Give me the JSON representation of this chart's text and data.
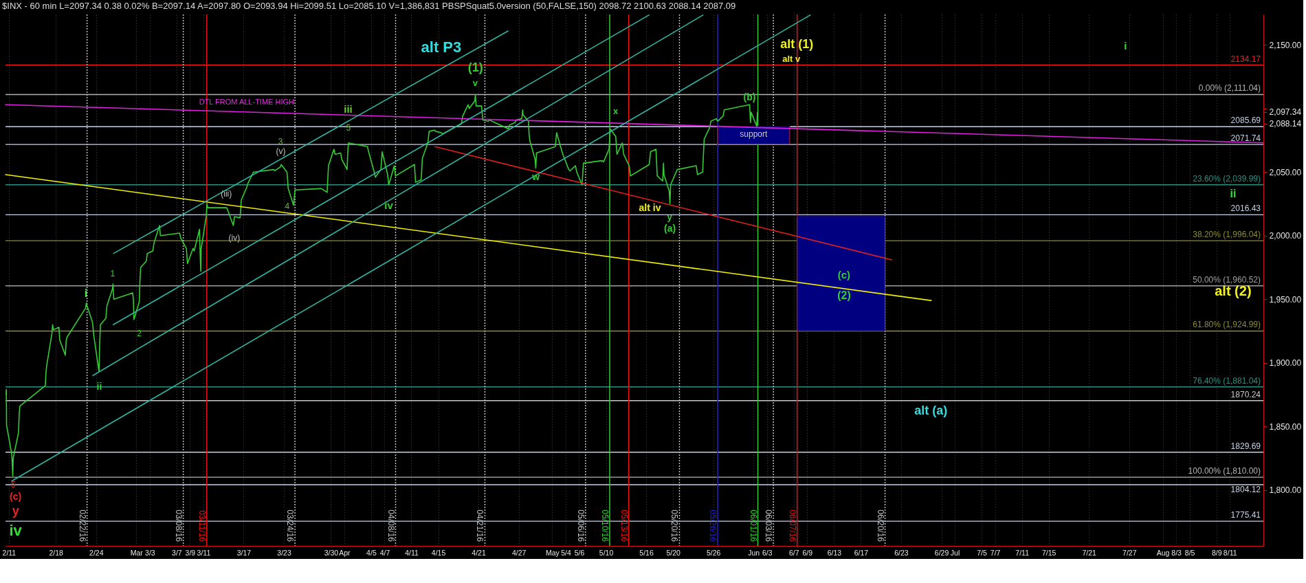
{
  "chart_data": {
    "type": "line",
    "title": "$INX - 60 min L=2097.34 0.38 0.02% B=2097.14 A=2097.80 O=2093.94 Hi=2099.51 Lo=2085.10 V=1,386,831 PBSPSquat5.0version (50,FALSE,150) 2098.72 2100.63 2088.14 2087.09",
    "xlim": [
      "2016-02-10T12:00",
      "2016-08-16"
    ],
    "ylim": [
      1756,
      2174
    ],
    "xticks": [
      {
        "value": "2016-02-11",
        "label": "2/11"
      },
      {
        "value": "2016-02-18",
        "label": "2/18"
      },
      {
        "value": "2016-02-24",
        "label": "2/24"
      },
      {
        "value": "2016-03-01",
        "label": "Mar"
      },
      {
        "value": "2016-03-03",
        "label": "3/3"
      },
      {
        "value": "2016-03-07",
        "label": "3/7"
      },
      {
        "value": "2016-03-09",
        "label": "3/9"
      },
      {
        "value": "2016-03-11",
        "label": "3/11"
      },
      {
        "value": "2016-03-17",
        "label": "3/17"
      },
      {
        "value": "2016-03-23",
        "label": "3/23"
      },
      {
        "value": "2016-03-30",
        "label": "3/30"
      },
      {
        "value": "2016-04-01",
        "label": "Apr"
      },
      {
        "value": "2016-04-05",
        "label": "4/5"
      },
      {
        "value": "2016-04-07",
        "label": "4/7"
      },
      {
        "value": "2016-04-11",
        "label": "4/11"
      },
      {
        "value": "2016-04-15",
        "label": "4/15"
      },
      {
        "value": "2016-04-21",
        "label": "4/21"
      },
      {
        "value": "2016-04-27",
        "label": "4/27"
      },
      {
        "value": "2016-05-02",
        "label": "May"
      },
      {
        "value": "2016-05-04",
        "label": "5/4"
      },
      {
        "value": "2016-05-06",
        "label": "5/6"
      },
      {
        "value": "2016-05-10",
        "label": "5/10"
      },
      {
        "value": "2016-05-16",
        "label": "5/16"
      },
      {
        "value": "2016-05-20",
        "label": "5/20"
      },
      {
        "value": "2016-05-26",
        "label": "5/26"
      },
      {
        "value": "2016-06-01",
        "label": "Jun"
      },
      {
        "value": "2016-06-03",
        "label": "6/3"
      },
      {
        "value": "2016-06-07",
        "label": "6/7"
      },
      {
        "value": "2016-06-09",
        "label": "6/9"
      },
      {
        "value": "2016-06-13",
        "label": "6/13"
      },
      {
        "value": "2016-06-17",
        "label": "6/17"
      },
      {
        "value": "2016-06-23",
        "label": "6/23"
      },
      {
        "value": "2016-06-29",
        "label": "6/29"
      },
      {
        "value": "2016-07-01",
        "label": "Jul"
      },
      {
        "value": "2016-07-05",
        "label": "7/5"
      },
      {
        "value": "2016-07-07",
        "label": "7/7"
      },
      {
        "value": "2016-07-11",
        "label": "7/11"
      },
      {
        "value": "2016-07-15",
        "label": "7/15"
      },
      {
        "value": "2016-07-21",
        "label": "7/21"
      },
      {
        "value": "2016-07-27",
        "label": "7/27"
      },
      {
        "value": "2016-08-01",
        "label": "Aug"
      },
      {
        "value": "2016-08-03",
        "label": "8/3"
      },
      {
        "value": "2016-08-05",
        "label": "8/5"
      },
      {
        "value": "2016-08-09",
        "label": "8/9"
      },
      {
        "value": "2016-08-11",
        "label": "8/11"
      }
    ],
    "yticks": [
      {
        "value": 1800,
        "label": "1,800.00"
      },
      {
        "value": 1850,
        "label": "1,850.00"
      },
      {
        "value": 1900,
        "label": "1,900.00"
      },
      {
        "value": 1950,
        "label": "1,950.00"
      },
      {
        "value": 2000,
        "label": "2,000.00"
      },
      {
        "value": 2050,
        "label": "2,050.00"
      },
      {
        "value": 2088.14,
        "label": "2,088.14"
      },
      {
        "value": 2097.34,
        "label": "2,097.34"
      },
      {
        "value": 2100,
        "label": null
      },
      {
        "value": 2150,
        "label": "2,150.00"
      }
    ],
    "grid": "x",
    "series": [
      {
        "color": "#33cc33",
        "x": [
          "2016-02-10T14:00",
          "2016-02-10T15:00",
          "2016-02-10T15:45",
          "2016-02-11T10:30",
          "2016-02-11T12:30",
          "2016-02-11T14:00",
          "2016-02-11T15:30",
          "2016-02-12T10:30",
          "2016-02-12T13:00",
          "2016-02-12T15:30",
          "2016-02-16T10:30",
          "2016-02-16T13:00",
          "2016-02-16T15:30",
          "2016-02-17T10:00",
          "2016-02-17T12:30",
          "2016-02-17T15:30",
          "2016-02-18T11:00",
          "2016-02-18T14:00",
          "2016-02-19T10:00",
          "2016-02-19T13:00",
          "2016-02-19T15:30",
          "2016-02-22T10:30",
          "2016-02-22T13:00",
          "2016-02-22T15:30",
          "2016-02-23T11:00",
          "2016-02-23T14:00",
          "2016-02-23T15:30",
          "2016-02-24T10:30",
          "2016-02-24T13:00",
          "2016-02-24T15:30",
          "2016-02-25T11:00",
          "2016-02-25T15:00",
          "2016-02-26T10:30",
          "2016-02-26T12:30",
          "2016-02-26T15:30",
          "2016-02-29T11:00",
          "2016-02-29T13:30",
          "2016-02-29T15:30",
          "2016-03-01T10:30",
          "2016-03-01T13:00",
          "2016-03-01T15:30",
          "2016-03-02T12:00",
          "2016-03-02T15:00",
          "2016-03-03T11:00",
          "2016-03-03T15:00",
          "2016-03-04T11:00",
          "2016-03-04T14:00",
          "2016-03-07T11:00",
          "2016-03-07T15:00",
          "2016-03-08T11:00",
          "2016-03-08T15:00",
          "2016-03-09T11:00",
          "2016-03-09T15:00",
          "2016-03-10T10:00",
          "2016-03-10T12:30",
          "2016-03-10T14:30",
          "2016-03-10T15:30",
          "2016-03-11T10:00",
          "2016-03-11T12:30",
          "2016-03-11T15:30",
          "2016-03-14T11:00",
          "2016-03-14T15:00",
          "2016-03-15T11:00",
          "2016-03-15T15:00",
          "2016-03-16T11:00",
          "2016-03-16T14:00",
          "2016-03-16T15:30",
          "2016-03-17T11:00",
          "2016-03-17T15:00",
          "2016-03-18T11:00",
          "2016-03-18T15:00",
          "2016-03-21T11:00",
          "2016-03-21T15:00",
          "2016-03-22T11:00",
          "2016-03-22T14:00",
          "2016-03-23T11:00",
          "2016-03-23T15:30",
          "2016-03-24T10:30",
          "2016-03-24T15:30",
          "2016-03-28T11:00",
          "2016-03-28T15:00",
          "2016-03-29T10:30",
          "2016-03-29T15:30",
          "2016-03-30T11:00",
          "2016-03-30T15:00",
          "2016-03-31T11:00",
          "2016-03-31T15:00",
          "2016-04-01T10:00",
          "2016-04-01T13:00",
          "2016-04-01T15:30",
          "2016-04-04T11:00",
          "2016-04-04T15:00",
          "2016-04-05T11:00",
          "2016-04-05T15:00",
          "2016-04-06T11:00",
          "2016-04-06T15:30",
          "2016-04-07T11:00",
          "2016-04-07T15:00",
          "2016-04-08T11:00",
          "2016-04-08T15:00",
          "2016-04-11T11:00",
          "2016-04-11T15:00",
          "2016-04-12T11:00",
          "2016-04-12T15:30",
          "2016-04-13T11:00",
          "2016-04-13T15:30",
          "2016-04-14T11:00",
          "2016-04-14T15:00",
          "2016-04-15T11:00",
          "2016-04-15T15:00",
          "2016-04-18T11:00",
          "2016-04-18T15:30",
          "2016-04-19T11:00",
          "2016-04-19T15:00",
          "2016-04-20T11:00",
          "2016-04-20T13:00",
          "2016-04-20T15:30",
          "2016-04-21T11:00",
          "2016-04-21T15:30",
          "2016-04-22T11:00",
          "2016-04-22T15:00",
          "2016-04-25T11:00",
          "2016-04-25T15:00",
          "2016-04-26T11:00",
          "2016-04-26T15:00",
          "2016-04-27T11:00",
          "2016-04-27T14:30",
          "2016-04-27T15:30",
          "2016-04-28T11:00",
          "2016-04-28T13:00",
          "2016-04-28T15:30",
          "2016-04-29T10:30",
          "2016-04-29T13:00",
          "2016-04-29T15:30",
          "2016-05-02T11:00",
          "2016-05-02T15:30",
          "2016-05-03T11:00",
          "2016-05-03T15:30",
          "2016-05-04T11:00",
          "2016-05-04T15:30",
          "2016-05-05T11:00",
          "2016-05-05T15:30",
          "2016-05-06T10:30",
          "2016-05-06T15:30",
          "2016-05-09T11:00",
          "2016-05-09T15:30",
          "2016-05-10T11:00",
          "2016-05-10T15:30",
          "2016-05-11T11:00",
          "2016-05-11T15:30",
          "2016-05-12T10:30",
          "2016-05-12T15:30",
          "2016-05-13T11:00",
          "2016-05-13T15:30",
          "2016-05-16T11:00",
          "2016-05-16T15:30",
          "2016-05-17T11:00",
          "2016-05-17T15:30",
          "2016-05-18T11:00",
          "2016-05-18T14:00",
          "2016-05-18T15:30",
          "2016-05-19T10:30",
          "2016-05-19T13:00",
          "2016-05-19T15:30",
          "2016-05-20T11:00",
          "2016-05-20T15:30",
          "2016-05-23T11:00",
          "2016-05-23T15:30",
          "2016-05-24T10:00",
          "2016-05-24T13:00",
          "2016-05-24T15:30",
          "2016-05-25T11:00",
          "2016-05-25T15:30",
          "2016-05-26T11:00",
          "2016-05-26T15:30",
          "2016-05-27T11:00",
          "2016-05-27T15:30",
          "2016-05-31T10:00",
          "2016-05-31T13:00",
          "2016-05-31T15:30",
          "2016-06-01T11:30",
          "2016-06-01T14:00"
        ],
        "values": [
          1875,
          1879,
          1851,
          1828,
          1818,
          1811,
          1825,
          1845,
          1860,
          1866,
          1882,
          1893,
          1898,
          1923,
          1930,
          1926,
          1928,
          1918,
          1906,
          1917,
          1920,
          1943,
          1947,
          1945,
          1932,
          1926,
          1922,
          1893,
          1915,
          1930,
          1935,
          1945,
          1958,
          1962,
          1950,
          1955,
          1950,
          1934,
          1948,
          1965,
          1975,
          1980,
          1986,
          1988,
          1994,
          2008,
          2000,
          2002,
          1998,
          1990,
          1978,
          1990,
          1988,
          2005,
          1985,
          1972,
          1989,
          2015,
          2025,
          2022,
          2022,
          2020,
          2008,
          2015,
          2014,
          2022,
          2028,
          2038,
          2041,
          2050,
          2050,
          2052,
          2051,
          2054,
          2056,
          2050,
          2037,
          2024,
          2036,
          2037,
          2037,
          2034,
          2055,
          2068,
          2064,
          2065,
          2060,
          2052,
          2068,
          2073,
          2070,
          2066,
          2050,
          2046,
          2052,
          2066,
          2048,
          2040,
          2055,
          2047,
          2056,
          2042,
          2044,
          2061,
          2073,
          2082,
          2083,
          2082,
          2081,
          2080,
          2088,
          2094,
          2103,
          2100,
          2106,
          2111,
          2102,
          2102,
          2091,
          2090,
          2091,
          2084,
          2087,
          2089,
          2091,
          2092,
          2099,
          2095,
          2090,
          2080,
          2075,
          2060,
          2053,
          2065,
          2070,
          2081,
          2066,
          2063,
          2052,
          2051,
          2055,
          2050,
          2040,
          2057,
          2059,
          2058,
          2068,
          2084,
          2078,
          2064,
          2073,
          2064,
          2055,
          2047,
          2056,
          2066,
          2068,
          2047,
          2043,
          2057,
          2048,
          2035,
          2025,
          2040,
          2050,
          2052,
          2055,
          2048,
          2050,
          2065,
          2076,
          2085,
          2090,
          2092,
          2090,
          2094,
          2099,
          2103,
          2089,
          2097,
          2086,
          2097
        ]
      },
      {
        "color": "#e020e0",
        "x": [
          "2016-02-10T12:00",
          "2016-08-16"
        ],
        "values": [
          2103,
          2073
        ]
      },
      {
        "color": "#f0f000",
        "x": [
          "2016-02-10T12:00",
          "2016-06-27T11:30"
        ],
        "values": [
          2048,
          1949
        ]
      },
      {
        "color": "#e02020",
        "x": [
          "2016-04-14T12:30",
          "2016-06-21T14:30"
        ],
        "values": [
          2070,
          1981
        ]
      },
      {
        "color": "#2fb3a0",
        "x": [
          "2016-02-26T14:30",
          "2016-04-25T10:00"
        ],
        "values": [
          1986,
          2161
        ]
      },
      {
        "color": "#2fb3a0",
        "x": [
          "2016-02-26T13:30",
          "2016-05-16T10:00"
        ],
        "values": [
          1930,
          2173.5
        ]
      },
      {
        "color": "#2fb3a0",
        "x": [
          "2016-02-23T12:30",
          "2016-05-24T11:00"
        ],
        "values": [
          1890,
          2173.5
        ]
      },
      {
        "color": "#2fb3a0",
        "x": [
          "2016-02-11T10:00",
          "2016-06-09T11:00"
        ],
        "values": [
          1807,
          2173.5
        ]
      },
      {
        "color": "#000080",
        "x": [
          "2016-06-07T12:00",
          "2016-06-20T14:30"
        ],
        "values": [
          2015,
          2015
        ],
        "lower": [
          1925,
          1925
        ],
        "upper": [
          2015,
          2015
        ]
      },
      {
        "color": "#000080",
        "x": [
          "2016-05-26T15:30",
          "2016-06-06T09:30"
        ],
        "values": [
          2086,
          2086
        ],
        "lower": [
          2072,
          2072
        ],
        "upper": [
          2086,
          2086
        ]
      }
    ],
    "ref_lines": [
      {
        "axis": "y",
        "value": 2134.17,
        "label": "2134.17",
        "color": "#ff1a1a"
      },
      {
        "axis": "y",
        "value": 2111.04,
        "label": "0.00% (2,111.04)",
        "color": "#b4b4b4"
      },
      {
        "axis": "y",
        "value": 2085.69,
        "label": "2085.69",
        "color": "#c8d2e6"
      },
      {
        "axis": "y",
        "value": 2071.74,
        "label": "2071.74",
        "color": "#c8d2e6"
      },
      {
        "axis": "y",
        "value": 2039.99,
        "label": "23.60% (2,039.99)",
        "color": "#2f8f80"
      },
      {
        "axis": "y",
        "value": 2016.43,
        "label": "2016.43",
        "color": "#c8d2e6"
      },
      {
        "axis": "y",
        "value": 1996.04,
        "label": "38.20% (1,996.04)",
        "color": "#8a8a3a"
      },
      {
        "axis": "y",
        "value": 1960.52,
        "label": "50.00% (1,960.52)",
        "color": "#a0a0a0"
      },
      {
        "axis": "y",
        "value": 1924.99,
        "label": "61.80% (1,924.99)",
        "color": "#8a8a3a"
      },
      {
        "axis": "y",
        "value": 1881.04,
        "label": "76.40% (1,881.04)",
        "color": "#2f8f80"
      },
      {
        "axis": "y",
        "value": 1870.24,
        "label": "1870.24",
        "color": "#c8c8c8"
      },
      {
        "axis": "y",
        "value": 1829.69,
        "label": "1829.69",
        "color": "#c8d2e6"
      },
      {
        "axis": "y",
        "value": 1810.0,
        "label": "100.00% (1,810.00)",
        "color": "#b4b4b4"
      },
      {
        "axis": "y",
        "value": 1804.12,
        "label": "1804.12",
        "color": "#c8d2e6"
      },
      {
        "axis": "y",
        "value": 1775.41,
        "label": "1775.41",
        "color": "#c8d2e6"
      },
      {
        "axis": "x",
        "value": "2016-02-22T15:45",
        "label": "02/22/16",
        "color": "#c0c0c0",
        "line_style": "dotted"
      },
      {
        "axis": "x",
        "value": "2016-03-08",
        "label": "03/08/16",
        "color": "#c0c0c0",
        "line_style": "dotted"
      },
      {
        "axis": "x",
        "value": "2016-03-11T12:00",
        "label": "03/11/16",
        "color": "#ee1111"
      },
      {
        "axis": "x",
        "value": "2016-03-24T15:30",
        "label": "03/24/16",
        "color": "#c0c0c0",
        "line_style": "dotted"
      },
      {
        "axis": "x",
        "value": "2016-04-08T15:30",
        "label": "04/08/16",
        "color": "#c0c0c0",
        "line_style": "dotted"
      },
      {
        "axis": "x",
        "value": "2016-04-21T23:00",
        "label": "04/21/16",
        "color": "#c0c0c0",
        "line_style": "dotted"
      },
      {
        "axis": "x",
        "value": "2016-05-06T23:00",
        "label": "05/06/16",
        "color": "#c0c0c0",
        "line_style": "dotted"
      },
      {
        "axis": "x",
        "value": "2016-05-10T13:30",
        "label": "05/10/16",
        "color": "#33cc33"
      },
      {
        "axis": "x",
        "value": "2016-05-13T09:30",
        "label": "05/13/16",
        "color": "#ee1111"
      },
      {
        "axis": "x",
        "value": "2016-05-20T23:00",
        "label": "05/20/16",
        "color": "#c0c0c0",
        "line_style": "dotted"
      },
      {
        "axis": "x",
        "value": "2016-05-26T15:30",
        "label": "05/26/16",
        "color": "#2020d0"
      },
      {
        "axis": "x",
        "value": "2016-06-01T15:30",
        "label": "06/01/16",
        "color": "#33cc33"
      },
      {
        "axis": "x",
        "value": "2016-06-03T23:00",
        "label": "06/03/16",
        "color": "#c0c0c0",
        "line_style": "dotted"
      },
      {
        "axis": "x",
        "value": "2016-06-07T12:00",
        "label": "06/07/16",
        "color": "#ee1111"
      },
      {
        "axis": "x",
        "value": "2016-06-20T14:30",
        "label": "06/20/16",
        "color": "#c0c0c0",
        "line_style": "dotted"
      }
    ],
    "annotations": [
      "alt P3",
      "DTL FROM ALL-TIME HIGH",
      "iii",
      {
        "text": "5",
        "x": "2016-04-01T14:30",
        "y": 2085
      },
      {
        "text": "3",
        "x": "2016-03-22T12:00",
        "y": 2074
      },
      "(v)",
      {
        "text": "(iii)",
        "x": "2016-03-14T10:00",
        "y": 2033
      },
      "4",
      "iv",
      {
        "text": "(iv)",
        "x": "2016-03-15T14:30",
        "y": 1998
      },
      "1",
      "i",
      {
        "text": "ii",
        "x": "2016-02-24T11:30",
        "y": 1881
      },
      "2",
      {
        "text": "5",
        "x": "2016-02-11T15:45",
        "y": 1804
      },
      "(c)",
      "y",
      "iv",
      {
        "text": "(1)",
        "x": "2016-04-20T13:30",
        "y": 2132
      },
      "v",
      "x",
      "w",
      "alt iv",
      "y",
      "(a)",
      "(b)",
      "alt (1)",
      "alt v",
      "(c)",
      "(2)",
      "i",
      "ii",
      "alt (2)",
      "alt (a)",
      "support"
    ]
  }
}
